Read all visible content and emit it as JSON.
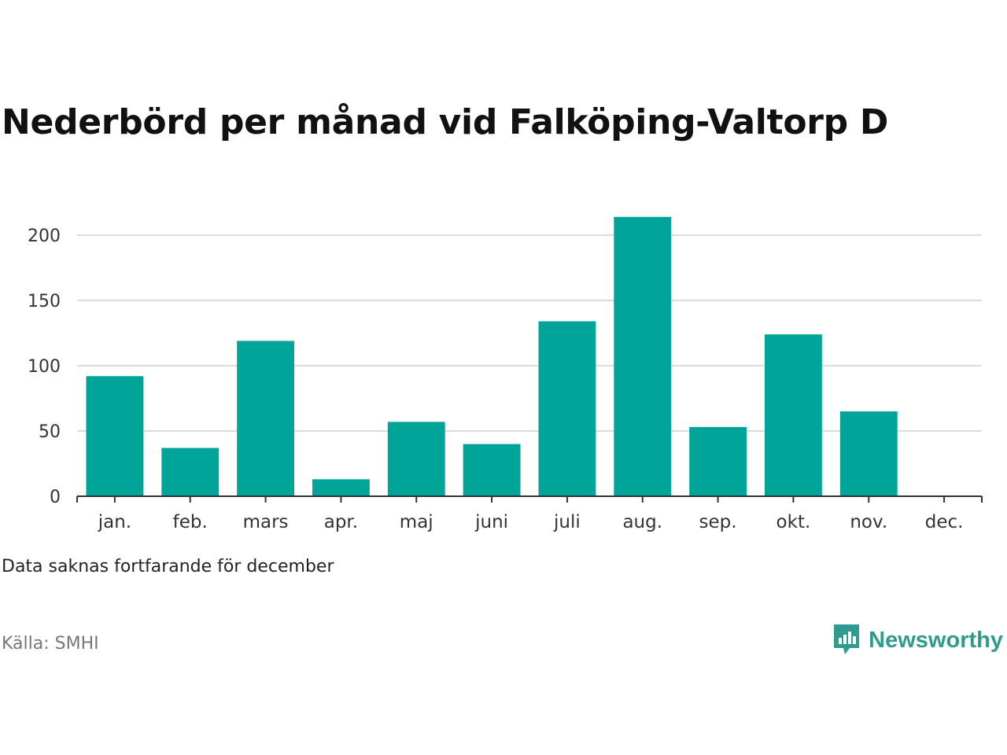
{
  "title": "Nederbörd per månad vid Falköping-Valtorp D",
  "note": "Data saknas fortfarande för december",
  "source": "Källa: SMHI",
  "brand": {
    "name": "Newsworthy",
    "color": "#2e9b8e",
    "icon": "newsworthy-logo-icon"
  },
  "chart_data": {
    "type": "bar",
    "title": "Nederbörd per månad vid Falköping-Valtorp D",
    "xlabel": "",
    "ylabel": "",
    "categories": [
      "jan.",
      "feb.",
      "mars",
      "apr.",
      "maj",
      "juni",
      "juli",
      "aug.",
      "sep.",
      "okt.",
      "nov.",
      "dec."
    ],
    "values": [
      92,
      37,
      119,
      13,
      57,
      40,
      134,
      214,
      53,
      124,
      65,
      null
    ],
    "ylim": [
      0,
      220
    ],
    "yticks": [
      0,
      50,
      100,
      150,
      200
    ],
    "bar_color": "#00a499",
    "grid": true,
    "legend": "none"
  }
}
